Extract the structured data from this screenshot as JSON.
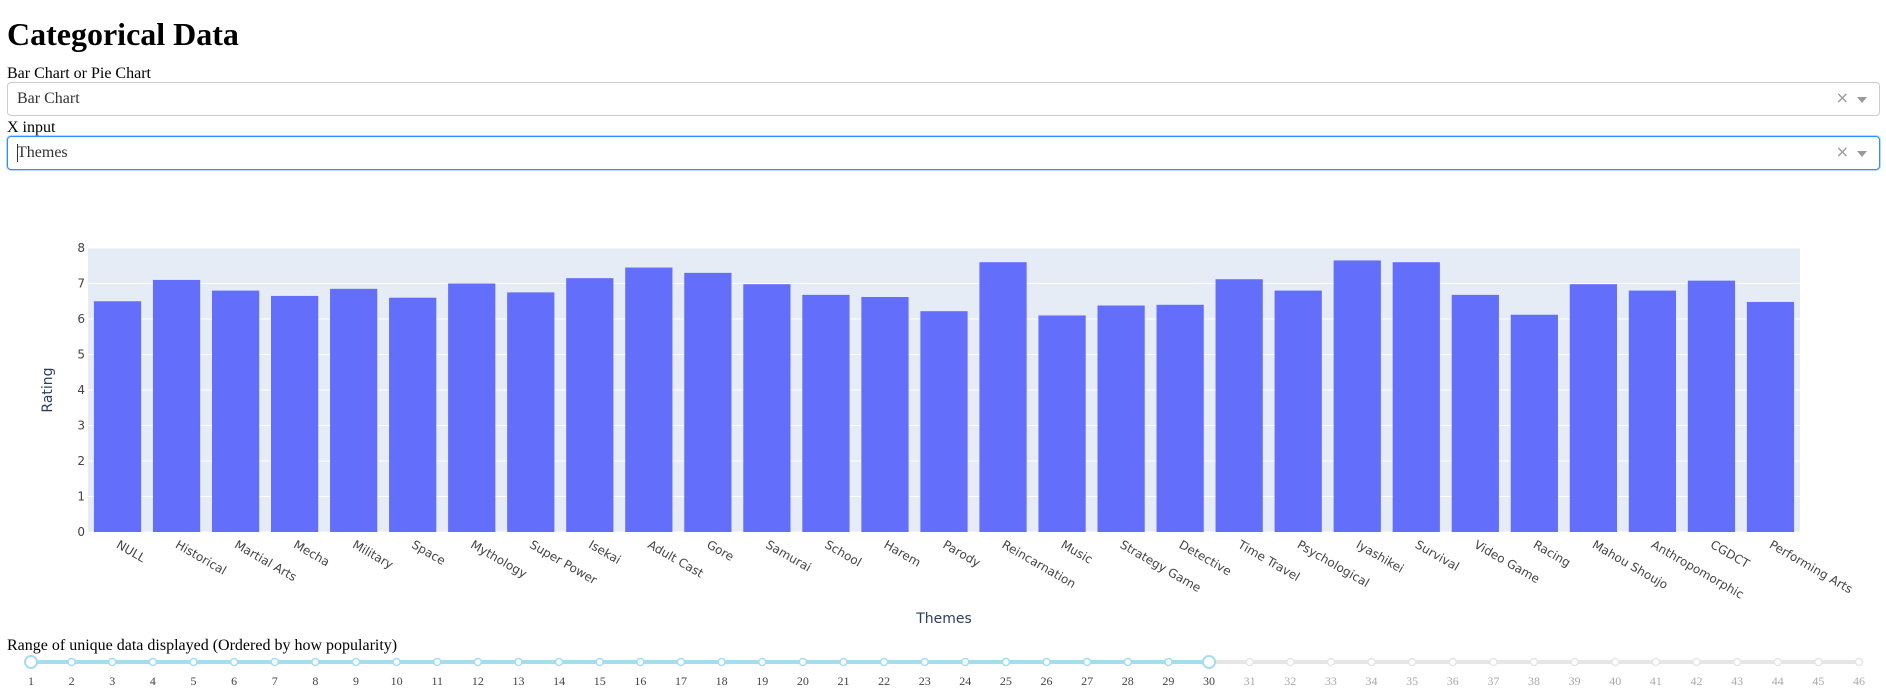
{
  "page": {
    "title": "Categorical Data"
  },
  "chart_type_select": {
    "label": "Bar Chart or Pie Chart",
    "value": "Bar Chart",
    "clear_icon": "×"
  },
  "x_input_select": {
    "label": "X input",
    "value": "Themes",
    "clear_icon": "×"
  },
  "slider": {
    "label": "Range of unique data displayed (Ordered by how popularity)",
    "min": 1,
    "max": 46,
    "range": [
      1,
      30
    ],
    "active_color": "#a6dcf0",
    "inactive_color": "#e6e6e6"
  },
  "chart_data": {
    "type": "bar",
    "xlabel": "Themes",
    "ylabel": "Rating",
    "ylim": [
      0,
      8
    ],
    "yticks": [
      0,
      1,
      2,
      3,
      4,
      5,
      6,
      7,
      8
    ],
    "bar_color": "#636efa",
    "plot_bg": "#e5ecf6",
    "grid": true,
    "categories": [
      "NULL",
      "Historical",
      "Martial Arts",
      "Mecha",
      "Military",
      "Space",
      "Mythology",
      "Super Power",
      "Isekai",
      "Adult Cast",
      "Gore",
      "Samurai",
      "School",
      "Harem",
      "Parody",
      "Reincarnation",
      "Music",
      "Strategy Game",
      "Detective",
      "Time Travel",
      "Psychological",
      "Iyashikei",
      "Survival",
      "Video Game",
      "Racing",
      "Mahou Shoujo",
      "Anthropomorphic",
      "CGDCT",
      "Performing Arts"
    ],
    "values": [
      6.5,
      7.1,
      6.8,
      6.65,
      6.85,
      6.6,
      7.0,
      6.75,
      7.15,
      7.45,
      7.3,
      6.98,
      6.68,
      6.62,
      6.22,
      7.6,
      6.1,
      6.38,
      6.4,
      7.12,
      6.8,
      7.65,
      7.6,
      6.68,
      6.12,
      6.98,
      6.8,
      7.08,
      6.48
    ]
  }
}
